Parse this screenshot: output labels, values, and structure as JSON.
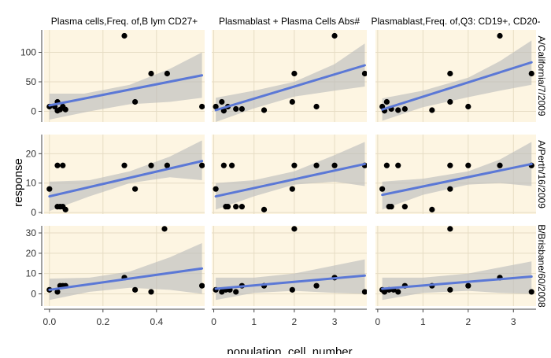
{
  "chart_data": {
    "type": "scatter",
    "facet_columns": [
      {
        "label": "Plasma cells,Freq. of,B lym CD27+",
        "xlim": [
          -0.02,
          0.58
        ],
        "xticks": [
          0.0,
          0.2,
          0.4
        ]
      },
      {
        "label": "Plasmablast + Plasma Cells Abs#",
        "xlim": [
          -0.05,
          3.8
        ],
        "xticks": [
          0,
          1,
          2,
          3
        ]
      },
      {
        "label": "Plasmablast,Freq. of,Q3: CD19+, CD20-",
        "xlim": [
          -0.05,
          3.5
        ],
        "xticks": [
          0,
          1,
          2,
          3
        ]
      }
    ],
    "facet_rows": [
      {
        "label": "A/California/7/2009",
        "ylim": [
          -18,
          138
        ],
        "yticks": [
          0,
          50,
          100
        ]
      },
      {
        "label": "A/Perth/16/2009",
        "ylim": [
          -0.5,
          26.5
        ],
        "yticks": [
          0,
          10,
          20
        ]
      },
      {
        "label": "B/Brisbane/60/2008",
        "ylim": [
          -6,
          33.5
        ],
        "yticks": [
          0,
          10,
          20,
          30
        ]
      }
    ],
    "xlabel": "population_cell_number",
    "ylabel": "response",
    "grid": true,
    "colors": {
      "panel_bg": "#fdf5e2",
      "grid": "#e6dcc4",
      "point": "#000000",
      "line": "#5b78d6",
      "band": "#bdbdbd",
      "text": "#333333"
    },
    "panels": [
      {
        "row": 0,
        "col": 0,
        "points": [
          [
            0.0,
            8
          ],
          [
            0.02,
            8
          ],
          [
            0.03,
            1
          ],
          [
            0.03,
            16
          ],
          [
            0.04,
            3
          ],
          [
            0.05,
            8
          ],
          [
            0.06,
            3
          ],
          [
            0.28,
            128
          ],
          [
            0.32,
            16
          ],
          [
            0.38,
            64
          ],
          [
            0.44,
            64
          ],
          [
            0.57,
            8
          ]
        ],
        "fit": [
          [
            0.0,
            10
          ],
          [
            0.57,
            61
          ]
        ],
        "band_upper": [
          [
            0.0,
            30
          ],
          [
            0.13,
            30
          ],
          [
            0.3,
            45
          ],
          [
            0.45,
            72
          ],
          [
            0.57,
            100
          ]
        ],
        "band_lower": [
          [
            0.0,
            -14
          ],
          [
            0.15,
            0
          ],
          [
            0.3,
            12
          ],
          [
            0.45,
            16
          ],
          [
            0.57,
            23
          ]
        ]
      },
      {
        "row": 0,
        "col": 1,
        "points": [
          [
            0.05,
            8
          ],
          [
            0.2,
            16
          ],
          [
            0.25,
            1
          ],
          [
            0.35,
            8
          ],
          [
            0.55,
            4
          ],
          [
            0.7,
            4
          ],
          [
            1.25,
            2
          ],
          [
            1.95,
            16
          ],
          [
            2.0,
            64
          ],
          [
            2.55,
            8
          ],
          [
            3.0,
            128
          ],
          [
            3.75,
            64
          ]
        ],
        "fit": [
          [
            0.05,
            2
          ],
          [
            3.75,
            78
          ]
        ],
        "band_upper": [
          [
            0.05,
            23
          ],
          [
            1.0,
            35
          ],
          [
            2.0,
            50
          ],
          [
            3.0,
            80
          ],
          [
            3.75,
            115
          ]
        ],
        "band_lower": [
          [
            0.05,
            -18
          ],
          [
            1.0,
            5
          ],
          [
            2.0,
            25
          ],
          [
            3.0,
            35
          ],
          [
            3.75,
            42
          ]
        ]
      },
      {
        "row": 0,
        "col": 2,
        "points": [
          [
            0.1,
            8
          ],
          [
            0.15,
            1
          ],
          [
            0.2,
            16
          ],
          [
            0.3,
            4
          ],
          [
            0.45,
            2
          ],
          [
            0.6,
            4
          ],
          [
            1.2,
            2
          ],
          [
            1.6,
            64
          ],
          [
            1.6,
            16
          ],
          [
            2.0,
            8
          ],
          [
            2.7,
            128
          ],
          [
            3.4,
            64
          ]
        ],
        "fit": [
          [
            0.1,
            3
          ],
          [
            3.4,
            83
          ]
        ],
        "band_upper": [
          [
            0.1,
            22
          ],
          [
            1.0,
            35
          ],
          [
            2.0,
            57
          ],
          [
            2.7,
            85
          ],
          [
            3.4,
            120
          ]
        ],
        "band_lower": [
          [
            0.1,
            -16
          ],
          [
            1.0,
            7
          ],
          [
            2.0,
            24
          ],
          [
            2.7,
            35
          ],
          [
            3.4,
            45
          ]
        ]
      },
      {
        "row": 1,
        "col": 0,
        "points": [
          [
            0.0,
            8
          ],
          [
            0.03,
            2
          ],
          [
            0.03,
            16
          ],
          [
            0.04,
            2
          ],
          [
            0.05,
            16
          ],
          [
            0.05,
            2
          ],
          [
            0.06,
            1
          ],
          [
            0.28,
            16
          ],
          [
            0.32,
            8
          ],
          [
            0.38,
            16
          ],
          [
            0.44,
            16
          ],
          [
            0.57,
            16
          ]
        ],
        "fit": [
          [
            0.0,
            5.5
          ],
          [
            0.57,
            17.5
          ]
        ],
        "band_upper": [
          [
            0.0,
            10.5
          ],
          [
            0.15,
            11
          ],
          [
            0.3,
            14
          ],
          [
            0.45,
            19
          ],
          [
            0.57,
            24.5
          ]
        ],
        "band_lower": [
          [
            0.0,
            0.5
          ],
          [
            0.15,
            5.5
          ],
          [
            0.3,
            10
          ],
          [
            0.45,
            12
          ],
          [
            0.57,
            11
          ]
        ]
      },
      {
        "row": 1,
        "col": 1,
        "points": [
          [
            0.05,
            8
          ],
          [
            0.25,
            16
          ],
          [
            0.3,
            2
          ],
          [
            0.35,
            2
          ],
          [
            0.45,
            16
          ],
          [
            0.55,
            2
          ],
          [
            0.7,
            2
          ],
          [
            1.25,
            1
          ],
          [
            1.95,
            8
          ],
          [
            2.0,
            16
          ],
          [
            2.55,
            16
          ],
          [
            3.0,
            16
          ],
          [
            3.75,
            16
          ]
        ],
        "fit": [
          [
            0.05,
            5.5
          ],
          [
            3.75,
            16.5
          ]
        ],
        "band_upper": [
          [
            0.05,
            10
          ],
          [
            1.0,
            11
          ],
          [
            2.0,
            14
          ],
          [
            3.0,
            19.5
          ],
          [
            3.75,
            24
          ]
        ],
        "band_lower": [
          [
            0.05,
            1
          ],
          [
            1.0,
            5.5
          ],
          [
            2.0,
            9.5
          ],
          [
            3.0,
            10.5
          ],
          [
            3.75,
            9
          ]
        ]
      },
      {
        "row": 1,
        "col": 2,
        "points": [
          [
            0.1,
            8
          ],
          [
            0.2,
            16
          ],
          [
            0.25,
            2
          ],
          [
            0.3,
            2
          ],
          [
            0.45,
            16
          ],
          [
            0.6,
            2
          ],
          [
            1.2,
            1
          ],
          [
            1.6,
            16
          ],
          [
            1.6,
            8
          ],
          [
            2.0,
            16
          ],
          [
            2.7,
            16
          ],
          [
            3.4,
            16
          ]
        ],
        "fit": [
          [
            0.1,
            6
          ],
          [
            3.4,
            16.5
          ]
        ],
        "band_upper": [
          [
            0.1,
            10.5
          ],
          [
            1.0,
            11.5
          ],
          [
            2.0,
            14
          ],
          [
            2.7,
            18
          ],
          [
            3.4,
            24
          ]
        ],
        "band_lower": [
          [
            0.1,
            1
          ],
          [
            1.0,
            6
          ],
          [
            2.0,
            9.5
          ],
          [
            2.7,
            10
          ],
          [
            3.4,
            9
          ]
        ]
      },
      {
        "row": 2,
        "col": 0,
        "points": [
          [
            0.0,
            2
          ],
          [
            0.03,
            1
          ],
          [
            0.04,
            4
          ],
          [
            0.05,
            4
          ],
          [
            0.06,
            4
          ],
          [
            0.28,
            8
          ],
          [
            0.32,
            2
          ],
          [
            0.38,
            1
          ],
          [
            0.43,
            32
          ],
          [
            0.57,
            4
          ]
        ],
        "fit": [
          [
            0.0,
            2
          ],
          [
            0.57,
            12.5
          ]
        ],
        "band_upper": [
          [
            0.0,
            7.5
          ],
          [
            0.15,
            8
          ],
          [
            0.3,
            11
          ],
          [
            0.45,
            18
          ],
          [
            0.57,
            25
          ]
        ],
        "band_lower": [
          [
            0.0,
            -3
          ],
          [
            0.15,
            1
          ],
          [
            0.3,
            3
          ],
          [
            0.45,
            2
          ],
          [
            0.57,
            0
          ]
        ]
      },
      {
        "row": 2,
        "col": 1,
        "points": [
          [
            0.05,
            2
          ],
          [
            0.2,
            1
          ],
          [
            0.3,
            2
          ],
          [
            0.4,
            2
          ],
          [
            0.55,
            1
          ],
          [
            0.7,
            4
          ],
          [
            1.25,
            4
          ],
          [
            1.95,
            2
          ],
          [
            2.0,
            32
          ],
          [
            2.55,
            4
          ],
          [
            3.0,
            8
          ],
          [
            3.75,
            1
          ]
        ],
        "fit": [
          [
            0.05,
            2.5
          ],
          [
            3.75,
            9
          ]
        ],
        "band_upper": [
          [
            0.05,
            8
          ],
          [
            1.0,
            8
          ],
          [
            2.0,
            10
          ],
          [
            3.0,
            14
          ],
          [
            3.75,
            17
          ]
        ],
        "band_lower": [
          [
            0.05,
            -3
          ],
          [
            1.0,
            0.5
          ],
          [
            2.0,
            1.5
          ],
          [
            3.0,
            0.5
          ],
          [
            3.75,
            0
          ]
        ]
      },
      {
        "row": 2,
        "col": 2,
        "points": [
          [
            0.1,
            2
          ],
          [
            0.15,
            1
          ],
          [
            0.25,
            2
          ],
          [
            0.35,
            2
          ],
          [
            0.45,
            1
          ],
          [
            0.6,
            4
          ],
          [
            1.2,
            4
          ],
          [
            1.6,
            2
          ],
          [
            1.6,
            32
          ],
          [
            2.0,
            4
          ],
          [
            2.7,
            8
          ],
          [
            3.4,
            1
          ]
        ],
        "fit": [
          [
            0.1,
            2.5
          ],
          [
            3.4,
            8.5
          ]
        ],
        "band_upper": [
          [
            0.1,
            8
          ],
          [
            1.0,
            8
          ],
          [
            2.0,
            10
          ],
          [
            2.7,
            13
          ],
          [
            3.4,
            16
          ]
        ],
        "band_lower": [
          [
            0.1,
            -3
          ],
          [
            1.0,
            0.5
          ],
          [
            2.0,
            1.5
          ],
          [
            2.7,
            0.5
          ],
          [
            3.4,
            0
          ]
        ]
      }
    ]
  }
}
